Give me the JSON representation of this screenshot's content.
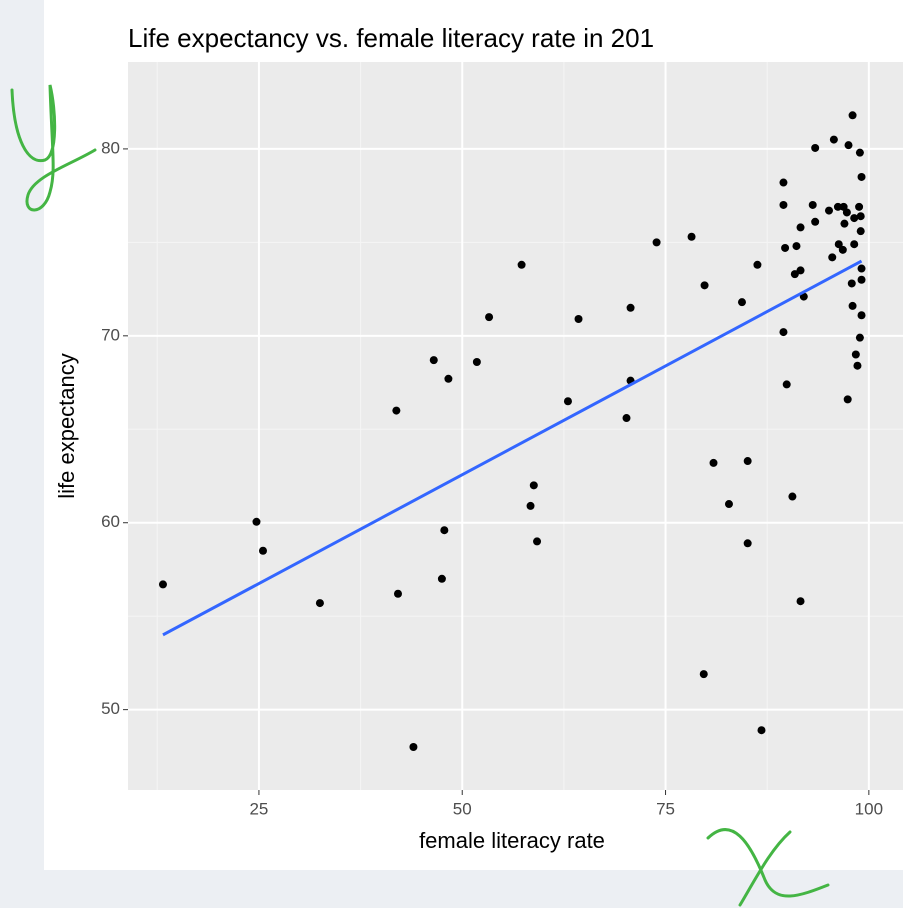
{
  "chart_data": {
    "type": "scatter",
    "title": "Life expectancy vs. female literacy rate in 201",
    "x_label": "female literacy rate",
    "y_label": "life expectancy",
    "x": [
      13.2,
      24.7,
      25.5,
      32.5,
      41.9,
      42.1,
      44.0,
      46.5,
      47.5,
      47.8,
      48.3,
      51.8,
      53.3,
      57.3,
      58.4,
      58.8,
      59.2,
      63.0,
      64.3,
      70.2,
      70.7,
      70.7,
      73.9,
      78.2,
      79.7,
      79.8,
      80.9,
      82.8,
      84.4,
      85.1,
      85.1,
      86.3,
      86.8,
      89.5,
      89.5,
      89.7,
      89.5,
      89.9,
      90.6,
      90.9,
      91.1,
      91.6,
      91.6,
      91.6,
      92.0,
      93.4,
      93.1,
      93.4,
      95.1,
      95.5,
      95.7,
      96.2,
      96.3,
      96.8,
      96.9,
      97.0,
      97.3,
      97.4,
      97.5,
      97.9,
      98.0,
      98.0,
      98.2,
      98.2,
      98.4,
      98.6,
      98.8,
      98.9,
      98.9,
      99.1,
      99.1,
      99.1,
      99.1,
      99.0,
      99.0
    ],
    "values": [
      56.7,
      60.05,
      58.5,
      55.7,
      66.0,
      56.2,
      48.0,
      68.7,
      57.0,
      59.6,
      67.7,
      68.6,
      71.0,
      73.8,
      60.9,
      62.0,
      59.0,
      66.5,
      70.9,
      65.6,
      71.5,
      67.6,
      75.0,
      75.3,
      51.9,
      72.7,
      63.2,
      61.0,
      71.8,
      63.3,
      58.9,
      73.8,
      48.9,
      78.2,
      77.0,
      74.7,
      70.2,
      67.4,
      61.4,
      73.3,
      74.8,
      75.8,
      73.5,
      55.8,
      72.1,
      80.05,
      77.0,
      76.1,
      76.7,
      74.2,
      80.5,
      76.9,
      74.9,
      74.6,
      76.9,
      76.0,
      76.6,
      66.6,
      80.2,
      72.8,
      81.8,
      71.6,
      74.9,
      76.3,
      69.0,
      68.4,
      76.9,
      79.8,
      69.9,
      73.6,
      73.0,
      71.1,
      78.5,
      76.4,
      75.6
    ],
    "color": "#000000",
    "fit": {
      "x": [
        13.2,
        99.1
      ],
      "values": [
        54.0,
        74.0
      ],
      "color": "#3366ff"
    },
    "xlim": [
      8.9,
      104.2
    ],
    "ylim": [
      45.7,
      84.65
    ],
    "xticks": [
      25,
      50,
      75,
      100
    ],
    "yticks": [
      50,
      60,
      70,
      80
    ],
    "x_minor_ticks": [
      12.5,
      37.5,
      62.5,
      87.5
    ],
    "y_minor_ticks": [
      55,
      65,
      75
    ],
    "grid": true
  }
}
